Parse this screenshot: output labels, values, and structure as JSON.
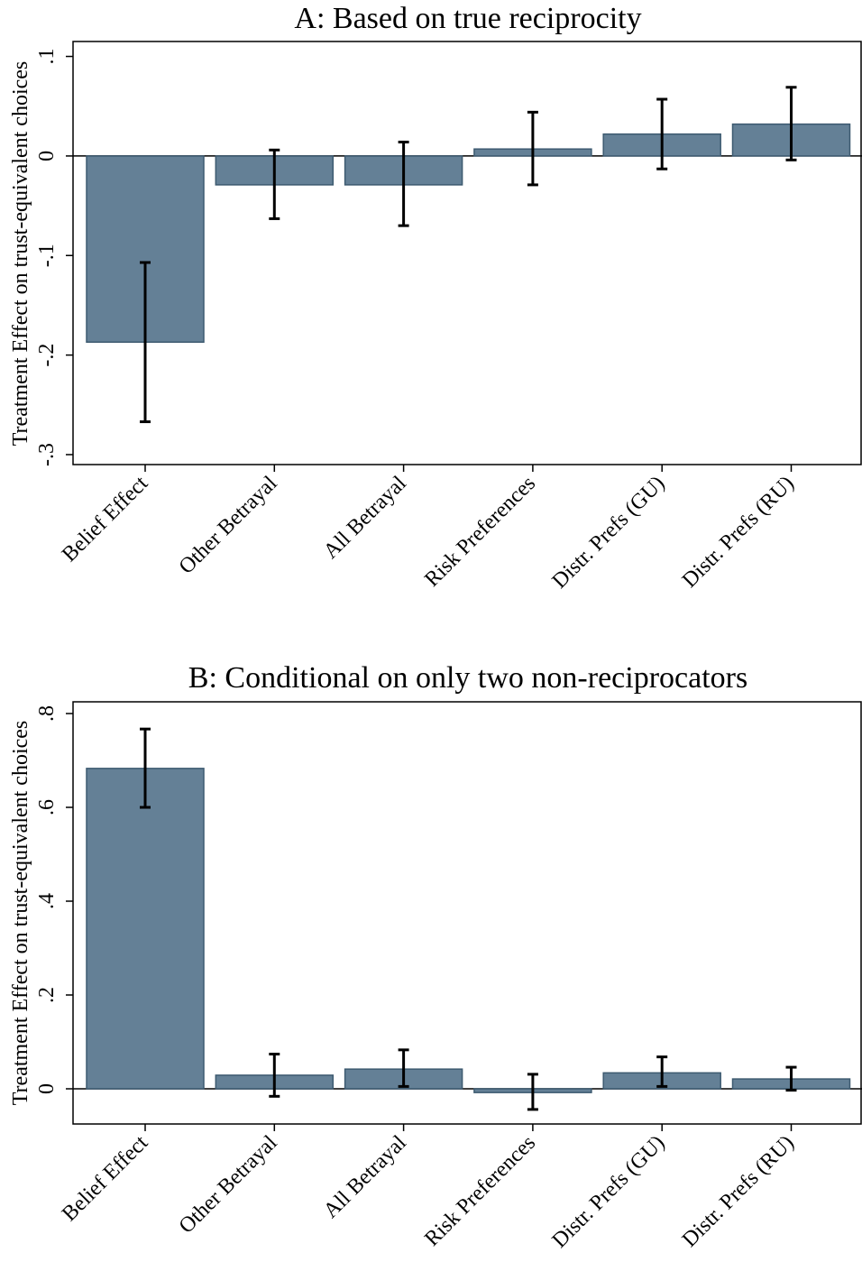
{
  "chart_data": [
    {
      "type": "bar",
      "title": "A: Based on true reciprocity",
      "ylabel": "Treatment Effect on trust-equivalent choices",
      "xlabel": "",
      "categories": [
        "Belief Effect",
        "Other Betrayal",
        "All Betrayal",
        "Risk Preferences",
        "Distr. Prefs (GU)",
        "Distr. Prefs (RU)"
      ],
      "values": [
        -0.187,
        -0.029,
        -0.029,
        0.007,
        0.022,
        0.032
      ],
      "ci_low": [
        -0.267,
        -0.063,
        -0.07,
        -0.029,
        -0.013,
        -0.004
      ],
      "ci_high": [
        -0.107,
        0.006,
        0.014,
        0.044,
        0.057,
        0.069
      ],
      "ylim": [
        -0.31,
        0.115
      ],
      "yticks": [
        0.1,
        0,
        -0.1,
        -0.2,
        -0.3
      ],
      "ytick_labels": [
        ".1",
        "0",
        "-.1",
        "-.2",
        "-.3"
      ],
      "grid": false,
      "bar_color": "#648096"
    },
    {
      "type": "bar",
      "title": "B: Conditional on only two non-reciprocators",
      "ylabel": "Treatment Effect on trust-equivalent choices",
      "xlabel": "",
      "categories": [
        "Belief Effect",
        "Other Betrayal",
        "All Betrayal",
        "Risk Preferences",
        "Distr. Prefs (GU)",
        "Distr. Prefs (RU)"
      ],
      "values": [
        0.683,
        0.029,
        0.042,
        -0.008,
        0.034,
        0.021
      ],
      "ci_low": [
        0.6,
        -0.016,
        0.005,
        -0.044,
        0.005,
        -0.003
      ],
      "ci_high": [
        0.767,
        0.074,
        0.083,
        0.031,
        0.068,
        0.046
      ],
      "ylim": [
        -0.075,
        0.825
      ],
      "yticks": [
        0.8,
        0.6,
        0.4,
        0.2,
        0
      ],
      "ytick_labels": [
        ".8",
        ".6",
        ".4",
        ".2",
        "0"
      ],
      "grid": false,
      "bar_color": "#648096"
    }
  ]
}
